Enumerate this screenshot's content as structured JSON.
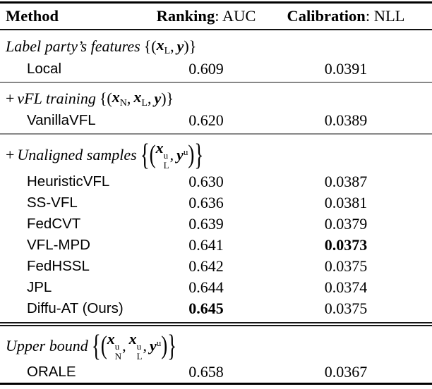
{
  "table": {
    "header": {
      "method": "Method",
      "ranking_label": "Ranking",
      "ranking_metric": ": AUC",
      "calibration_label": "Calibration",
      "calibration_metric": ": NLL"
    },
    "sections": [
      {
        "heading": {
          "tokens": [
            {
              "t": "text",
              "v": "Label party’s features"
            },
            {
              "t": "delim",
              "v": "{("
            },
            {
              "t": "var",
              "v": "x",
              "sub": "L"
            },
            {
              "t": "punct",
              "v": ","
            },
            {
              "t": "var",
              "v": "y"
            },
            {
              "t": "delim",
              "v": ")}"
            }
          ]
        },
        "rows": [
          {
            "method": "Local",
            "auc": "0.609",
            "nll": "0.0391"
          }
        ]
      },
      {
        "heading": {
          "tokens": [
            {
              "t": "punct",
              "v": "+"
            },
            {
              "t": "text",
              "v": "vFL training"
            },
            {
              "t": "delim",
              "v": "{("
            },
            {
              "t": "var",
              "v": "x",
              "sub": "N"
            },
            {
              "t": "punct",
              "v": ","
            },
            {
              "t": "var",
              "v": "x",
              "sub": "L"
            },
            {
              "t": "punct",
              "v": ","
            },
            {
              "t": "var",
              "v": "y"
            },
            {
              "t": "delim",
              "v": ")}"
            }
          ]
        },
        "rows": [
          {
            "method": "VanillaVFL",
            "auc": "0.620",
            "nll": "0.0389"
          }
        ]
      },
      {
        "heading": {
          "tokens": [
            {
              "t": "punct",
              "v": "+"
            },
            {
              "t": "text",
              "v": "Unaligned samples"
            },
            {
              "t": "bigbrace",
              "v": "{"
            },
            {
              "t": "bigparen",
              "v": "("
            },
            {
              "t": "var",
              "v": "x",
              "sub": "L",
              "sup": "u"
            },
            {
              "t": "punct",
              "v": ","
            },
            {
              "t": "var",
              "v": "y",
              "sup": "u"
            },
            {
              "t": "bigparen",
              "v": ")"
            },
            {
              "t": "bigbrace",
              "v": "}"
            }
          ]
        },
        "rows": [
          {
            "method": "HeuristicVFL",
            "auc": "0.630",
            "nll": "0.0387"
          },
          {
            "method": "SS-VFL",
            "auc": "0.636",
            "nll": "0.0381"
          },
          {
            "method": "FedCVT",
            "auc": "0.639",
            "nll": "0.0379"
          },
          {
            "method": "VFL-MPD",
            "auc": "0.641",
            "nll": "0.0373",
            "nll_bold": true
          },
          {
            "method": "FedHSSL",
            "auc": "0.642",
            "nll": "0.0375"
          },
          {
            "method": "JPL",
            "auc": "0.644",
            "nll": "0.0374"
          },
          {
            "method": "Diffu-AT (Ours)",
            "auc": "0.645",
            "auc_bold": true,
            "nll": "0.0375"
          }
        ]
      },
      {
        "heading": {
          "tokens": [
            {
              "t": "text",
              "v": "Upper bound"
            },
            {
              "t": "bigbrace",
              "v": "{"
            },
            {
              "t": "bigparen",
              "v": "("
            },
            {
              "t": "var",
              "v": "x",
              "sub": "N",
              "sup": "u"
            },
            {
              "t": "punct",
              "v": ","
            },
            {
              "t": "var",
              "v": "x",
              "sub": "L",
              "sup": "u"
            },
            {
              "t": "punct",
              "v": ","
            },
            {
              "t": "var",
              "v": "y",
              "sup": "u"
            },
            {
              "t": "bigparen",
              "v": ")"
            },
            {
              "t": "bigbrace",
              "v": "}"
            }
          ]
        },
        "rows": [
          {
            "method": "ORALE",
            "auc": "0.658",
            "nll": "0.0367"
          }
        ]
      }
    ]
  }
}
